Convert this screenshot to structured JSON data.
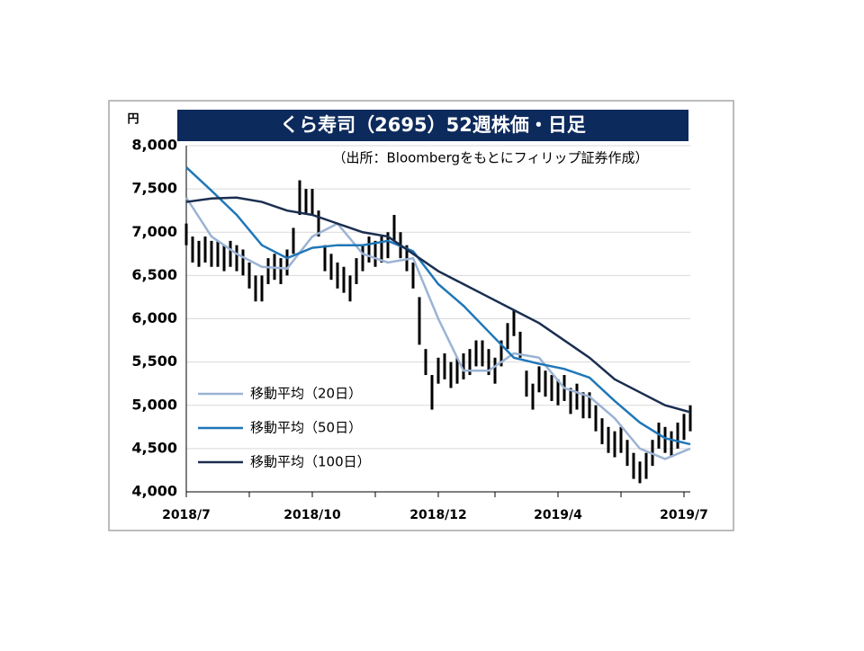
{
  "chart_data": {
    "type": "candlestick",
    "title": "くら寿司（2695）52週株価・日足",
    "subtitle": "（出所：Bloombergをもとにフィリップ証券作成）",
    "y_unit": "円",
    "xlim": [
      0,
      80
    ],
    "xticks": [
      {
        "value": 0,
        "label": "2018/7"
      },
      {
        "value": 20,
        "label": "2018/10"
      },
      {
        "value": 40,
        "label": "2018/12"
      },
      {
        "value": 59,
        "label": "2019/4"
      },
      {
        "value": 79,
        "label": "2019/7"
      }
    ],
    "xminor": [
      10,
      30,
      49,
      69
    ],
    "ylim": [
      4000,
      8000
    ],
    "yticks": [
      {
        "value": 4000,
        "label": "4,000"
      },
      {
        "value": 4500,
        "label": "4,500"
      },
      {
        "value": 5000,
        "label": "5,000"
      },
      {
        "value": 5500,
        "label": "5,500"
      },
      {
        "value": 6000,
        "label": "6,000"
      },
      {
        "value": 6500,
        "label": "6,500"
      },
      {
        "value": 7000,
        "label": "7,000"
      },
      {
        "value": 7500,
        "label": "7,500"
      },
      {
        "value": 8000,
        "label": "8,000"
      }
    ],
    "grid": true,
    "legend": "lower left",
    "candles": {
      "color": "#000000",
      "x": [
        0,
        1,
        2,
        3,
        4,
        5,
        6,
        7,
        8,
        9,
        10,
        11,
        12,
        13,
        14,
        15,
        16,
        17,
        18,
        19,
        20,
        21,
        22,
        23,
        24,
        25,
        26,
        27,
        28,
        29,
        30,
        31,
        32,
        33,
        34,
        35,
        36,
        37,
        38,
        39,
        40,
        41,
        42,
        43,
        44,
        45,
        46,
        47,
        48,
        49,
        50,
        51,
        52,
        53,
        54,
        55,
        56,
        57,
        58,
        59,
        60,
        61,
        62,
        63,
        64,
        65,
        66,
        67,
        68,
        69,
        70,
        71,
        72,
        73,
        74,
        75,
        76,
        77,
        78,
        79,
        80
      ],
      "high": [
        7100,
        6950,
        6900,
        6950,
        6900,
        6900,
        6850,
        6900,
        6850,
        6800,
        6650,
        6500,
        6500,
        6700,
        6750,
        6700,
        6800,
        7050,
        7600,
        7500,
        7500,
        7250,
        6850,
        6750,
        6650,
        6600,
        6500,
        6700,
        6850,
        6950,
        6900,
        6950,
        7000,
        7200,
        7000,
        6850,
        6650,
        6250,
        5650,
        5350,
        5550,
        5600,
        5500,
        5550,
        5600,
        5650,
        5750,
        5750,
        5650,
        5550,
        5750,
        5950,
        6100,
        5850,
        5400,
        5250,
        5450,
        5400,
        5350,
        5300,
        5350,
        5200,
        5250,
        5150,
        5150,
        5000,
        4850,
        4750,
        4700,
        4750,
        4600,
        4450,
        4350,
        4450,
        4600,
        4800,
        4750,
        4700,
        4800,
        4900,
        5000
      ],
      "low": [
        6850,
        6650,
        6600,
        6650,
        6600,
        6600,
        6550,
        6600,
        6550,
        6500,
        6350,
        6200,
        6200,
        6400,
        6450,
        6400,
        6500,
        6750,
        7200,
        7200,
        7200,
        6950,
        6550,
        6450,
        6350,
        6300,
        6200,
        6400,
        6550,
        6650,
        6600,
        6650,
        6700,
        6900,
        6700,
        6550,
        6350,
        5700,
        5350,
        4950,
        5250,
        5300,
        5200,
        5250,
        5300,
        5350,
        5450,
        5450,
        5350,
        5250,
        5450,
        5650,
        5800,
        5550,
        5100,
        4950,
        5150,
        5100,
        5050,
        5000,
        5050,
        4900,
        4950,
        4850,
        4850,
        4700,
        4550,
        4450,
        4400,
        4450,
        4300,
        4150,
        4100,
        4150,
        4300,
        4500,
        4450,
        4400,
        4500,
        4600,
        4700
      ]
    },
    "series": [
      {
        "name": "移動平均（20日）",
        "color": "#9bb3d4",
        "x": [
          0,
          4,
          8,
          12,
          16,
          20,
          24,
          28,
          32,
          36,
          40,
          44,
          48,
          52,
          56,
          60,
          64,
          68,
          72,
          76,
          80
        ],
        "values": [
          7400,
          6950,
          6750,
          6600,
          6580,
          6950,
          7100,
          6750,
          6650,
          6700,
          6000,
          5400,
          5400,
          5600,
          5550,
          5200,
          5100,
          4850,
          4500,
          4380,
          4500
        ]
      },
      {
        "name": "移動平均（50日）",
        "color": "#1f77b8",
        "x": [
          0,
          4,
          8,
          12,
          16,
          20,
          24,
          28,
          32,
          36,
          40,
          44,
          48,
          52,
          56,
          60,
          64,
          68,
          72,
          76,
          80
        ],
        "values": [
          7750,
          7480,
          7200,
          6850,
          6700,
          6820,
          6850,
          6850,
          6900,
          6780,
          6400,
          6150,
          5850,
          5550,
          5480,
          5420,
          5320,
          5050,
          4800,
          4620,
          4550
        ]
      },
      {
        "name": "移動平均（100日）",
        "color": "#1a2e4f",
        "x": [
          0,
          4,
          8,
          12,
          16,
          20,
          24,
          28,
          32,
          36,
          40,
          44,
          48,
          52,
          56,
          60,
          64,
          68,
          72,
          76,
          80
        ],
        "values": [
          7350,
          7390,
          7400,
          7350,
          7250,
          7200,
          7100,
          7000,
          6950,
          6750,
          6550,
          6400,
          6250,
          6100,
          5950,
          5750,
          5550,
          5300,
          5150,
          5000,
          4920
        ]
      }
    ]
  }
}
